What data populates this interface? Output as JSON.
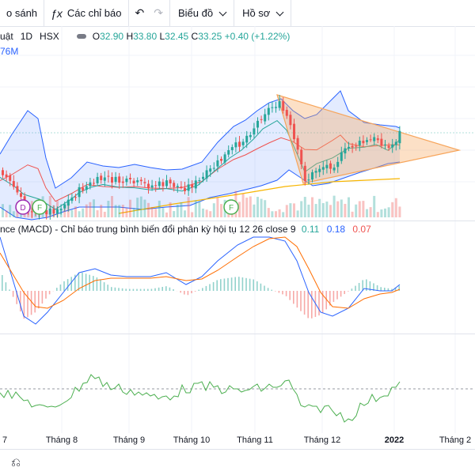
{
  "toolbar": {
    "compare_label": "o sánh",
    "indicators_icon": "ƒx",
    "indicators_label": "Các chỉ báo",
    "undo_icon": "↶",
    "redo_icon": "↷",
    "chart_label": "Biểu đồ",
    "profile_label": "Hồ sơ"
  },
  "legend": {
    "symbol": "uật",
    "timeframe": "1D",
    "exchange": "HSX",
    "open_label": "O",
    "open": "32.90",
    "high_label": "H",
    "high": "33.80",
    "low_label": "L",
    "low": "32.45",
    "close_label": "C",
    "close": "33.25",
    "change": "+0.40 (+1.22%)",
    "volume_partial": "76M"
  },
  "macd_legend": {
    "title": "nce (MACD) - Chỉ báo trung bình biến đổi phân kỳ hội tụ 12 26 close 9",
    "histogram": "0.11",
    "macd": "0.18",
    "signal": "0.07"
  },
  "markers": [
    "D",
    "F",
    "F"
  ],
  "x_axis": [
    "7",
    "Tháng 8",
    "Tháng 9",
    "Tháng 10",
    "Tháng 11",
    "Tháng 12",
    "2022",
    "Tháng 2"
  ],
  "bottom": {
    "replay_icon": "⎌"
  },
  "colors": {
    "up": "#26a69a",
    "down": "#ef5350",
    "bollinger": "#2962ff",
    "macd_line": "#2962ff",
    "signal_line": "#ff6d00",
    "triangle": "#f7a55b",
    "rsi_line": "#4caf50"
  }
}
